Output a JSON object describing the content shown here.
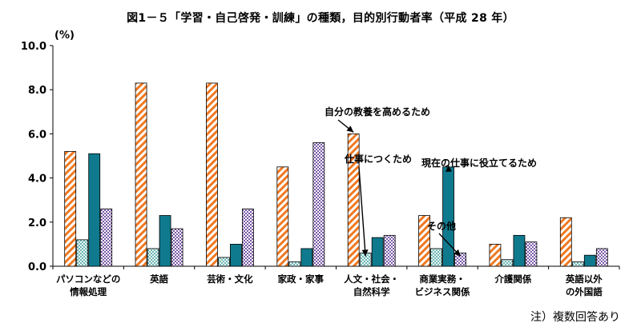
{
  "chart_data": {
    "type": "bar",
    "title": "図1－５「学習・自己啓発・訓練」の種類，目的別行動者率（平成 28 年）",
    "ylabel": "(%)",
    "ylim": [
      0,
      10
    ],
    "yticks": [
      "0.0",
      "2.0",
      "4.0",
      "6.0",
      "8.0",
      "10.0"
    ],
    "grid": false,
    "categories": [
      [
        "パソコンなどの",
        "情報処理"
      ],
      [
        "英語"
      ],
      [
        "芸術・文化"
      ],
      [
        "家政・家事"
      ],
      [
        "人文・社会・",
        "自然科学"
      ],
      [
        "商業実務・",
        "ビジネス関係"
      ],
      [
        "介護関係"
      ],
      [
        "英語以外",
        "の外国語"
      ]
    ],
    "series": [
      {
        "name": "自分の教養を高めるため",
        "pattern": "diagonal",
        "color": "#f07820",
        "values": [
          5.2,
          8.3,
          8.3,
          4.5,
          6.0,
          2.3,
          1.0,
          2.2
        ]
      },
      {
        "name": "仕事につくため",
        "pattern": "dots",
        "color": "#1a8c8c",
        "values": [
          1.2,
          0.8,
          0.4,
          0.2,
          0.6,
          0.8,
          0.3,
          0.2
        ]
      },
      {
        "name": "現在の仕事に役立てるため",
        "pattern": "solid",
        "color": "#0f7a8e",
        "values": [
          5.1,
          2.3,
          1.0,
          0.8,
          1.3,
          4.5,
          1.4,
          0.5
        ]
      },
      {
        "name": "その他",
        "pattern": "check",
        "color": "#7a5aa8",
        "values": [
          2.6,
          1.7,
          2.6,
          5.6,
          1.4,
          0.6,
          1.1,
          0.8
        ]
      }
    ],
    "annotations": [
      {
        "text": "自分の教養を高めるため",
        "series": 0,
        "category": 4
      },
      {
        "text": "仕事につくため",
        "series": 1,
        "category": 4
      },
      {
        "text": "現在の仕事に役立てるため",
        "series": 2,
        "category": 5
      },
      {
        "text": "その他",
        "series": 3,
        "category": 5
      }
    ]
  },
  "footnote": "注）複数回答あり"
}
